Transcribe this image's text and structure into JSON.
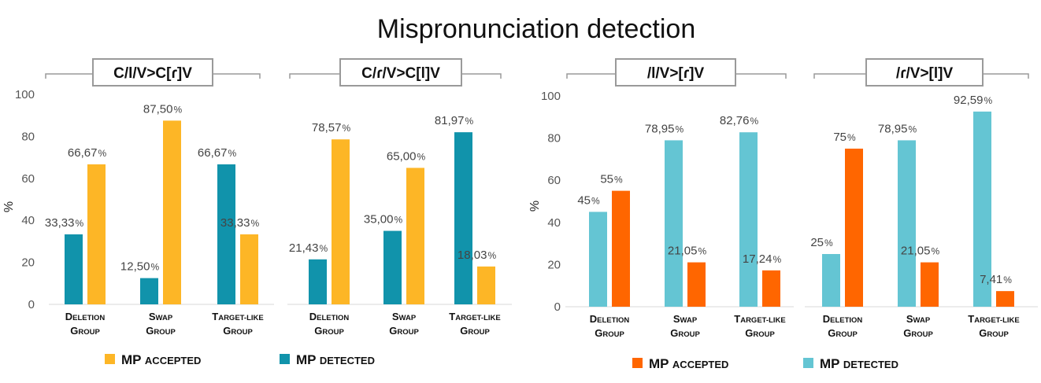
{
  "title": "Mispronunciation detection",
  "ylabel": "%",
  "colors": {
    "left_accepted": "#FDB626",
    "left_detected": "#1193AB",
    "right_accepted": "#FF6600",
    "right_detected": "#64C5D3"
  },
  "legends": {
    "left": [
      {
        "series": "accepted",
        "label_big": "MP",
        "label_small": "ACCEPTED"
      },
      {
        "series": "detected",
        "label_big": "MP",
        "label_small": "DETECTED"
      }
    ],
    "right": [
      {
        "series": "accepted",
        "label_big": "MP",
        "label_small": "ACCEPTED"
      },
      {
        "series": "detected",
        "label_big": "MP",
        "label_small": "DETECTED"
      }
    ]
  },
  "chart_data": [
    {
      "type": "bar",
      "title": "C/l/V>C[ɾ]V",
      "categories": [
        "DELETION GROUP",
        "SWAP GROUP",
        "TARGET-LIKE GROUP"
      ],
      "ylim": [
        0,
        100
      ],
      "yticks": [
        0,
        20,
        40,
        60,
        80,
        100
      ],
      "series": [
        {
          "key": "detected",
          "name": "MP DETECTED",
          "values": [
            33.33,
            12.5,
            66.67
          ],
          "labels": [
            "33,33",
            "12,50",
            "66,67"
          ]
        },
        {
          "key": "accepted",
          "name": "MP ACCEPTED",
          "values": [
            66.67,
            87.5,
            33.33
          ],
          "labels": [
            "66,67",
            "87,50",
            "33,33"
          ]
        }
      ]
    },
    {
      "type": "bar",
      "title": "C/ɾ/V>C[l]V",
      "categories": [
        "DELETION GROUP",
        "SWAP GROUP",
        "TARGET-LIKE GROUP"
      ],
      "ylim": [
        0,
        100
      ],
      "series": [
        {
          "key": "detected",
          "name": "MP DETECTED",
          "values": [
            21.43,
            35.0,
            81.97
          ],
          "labels": [
            "21,43",
            "35,00",
            "81,97"
          ]
        },
        {
          "key": "accepted",
          "name": "MP ACCEPTED",
          "values": [
            78.57,
            65.0,
            18.03
          ],
          "labels": [
            "78,57",
            "65,00",
            "18,03"
          ]
        }
      ]
    },
    {
      "type": "bar",
      "title": "/l/V>[ɾ]V",
      "categories": [
        "DELETION GROUP",
        "SWAP GROUP",
        "TARGET-LIKE GROUP"
      ],
      "ylim": [
        0,
        100
      ],
      "yticks": [
        0,
        20,
        40,
        60,
        80,
        100
      ],
      "series": [
        {
          "key": "detected",
          "name": "MP DETECTED",
          "values": [
            45,
            78.95,
            82.76
          ],
          "labels": [
            "45",
            "78,95",
            "82,76"
          ]
        },
        {
          "key": "accepted",
          "name": "MP ACCEPTED",
          "values": [
            55,
            21.05,
            17.24
          ],
          "labels": [
            "55",
            "21,05",
            "17,24"
          ]
        }
      ]
    },
    {
      "type": "bar",
      "title": "/ɾ/V>[l]V",
      "categories": [
        "DELETION GROUP",
        "SWAP GROUP",
        "TARGET-LIKE GROUP"
      ],
      "ylim": [
        0,
        100
      ],
      "series": [
        {
          "key": "detected",
          "name": "MP DETECTED",
          "values": [
            25,
            78.95,
            92.59
          ],
          "labels": [
            "25",
            "78,95",
            "92,59"
          ]
        },
        {
          "key": "accepted",
          "name": "MP ACCEPTED",
          "values": [
            75,
            21.05,
            7.41
          ],
          "labels": [
            "75",
            "21,05",
            "7,41"
          ]
        }
      ]
    }
  ]
}
